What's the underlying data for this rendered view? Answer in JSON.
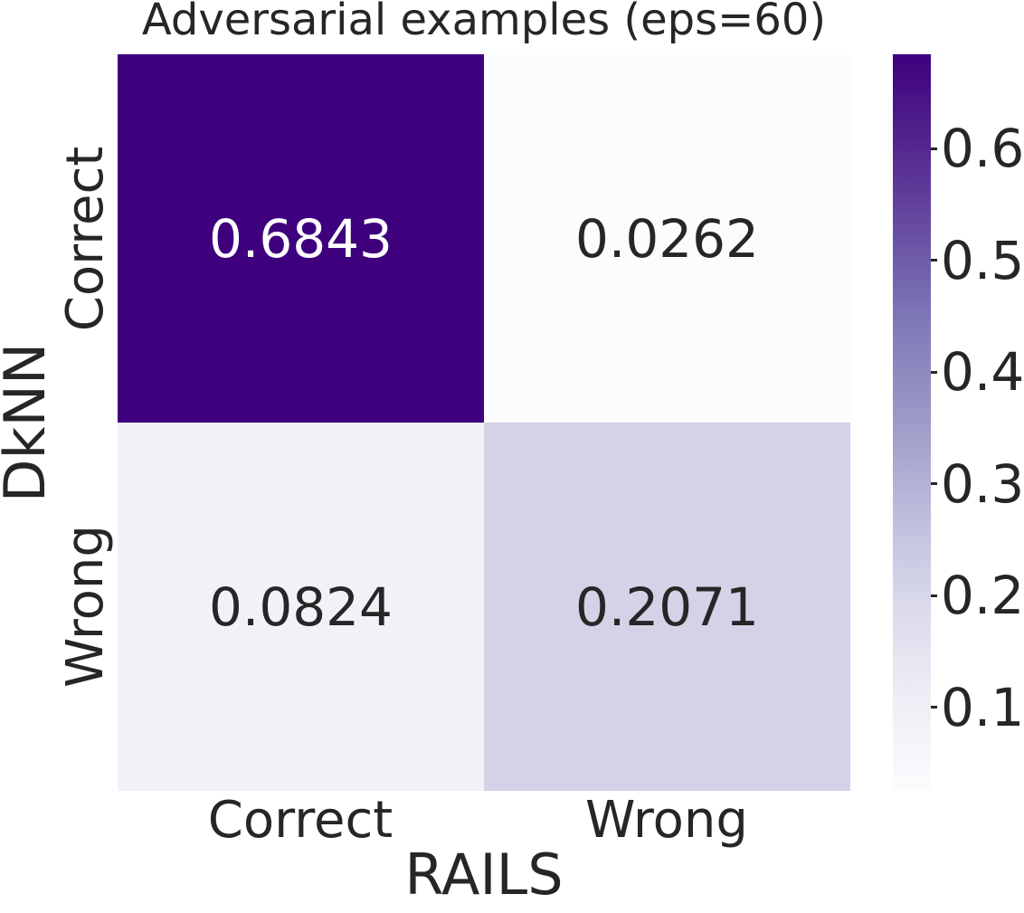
{
  "chart_data": {
    "type": "heatmap",
    "title": "Adversarial examples (eps=60)",
    "xlabel": "RAILS",
    "ylabel": "DkNN",
    "x_categories": [
      "Correct",
      "Wrong"
    ],
    "y_categories": [
      "Correct",
      "Wrong"
    ],
    "values": [
      [
        0.6843,
        0.0262
      ],
      [
        0.0824,
        0.2071
      ]
    ],
    "cell_labels": [
      [
        "0.6843",
        "0.0262"
      ],
      [
        "0.0824",
        "0.2071"
      ]
    ],
    "cell_colors": [
      [
        "#3f007d",
        "#fcfbfd"
      ],
      [
        "#f3f1f8",
        "#d3d2e7"
      ]
    ],
    "cell_text_colors": [
      [
        "#ffffff",
        "#262626"
      ],
      [
        "#262626",
        "#262626"
      ]
    ],
    "colormap": "Purples",
    "background": "#ffffff",
    "text_color": "#262626",
    "grid": false,
    "legend_position": "colorbar-right",
    "colorbar": {
      "min": 0.0262,
      "max": 0.6843,
      "ticks": [
        {
          "value": 0.1,
          "label": "0.1"
        },
        {
          "value": 0.2,
          "label": "0.2"
        },
        {
          "value": 0.3,
          "label": "0.3"
        },
        {
          "value": 0.4,
          "label": "0.4"
        },
        {
          "value": 0.5,
          "label": "0.5"
        },
        {
          "value": 0.6,
          "label": "0.6"
        }
      ],
      "gradient_stops_top_to_bottom": [
        "#3f007d",
        "#54278f",
        "#6a51a3",
        "#807dba",
        "#9e9ac8",
        "#bcbddc",
        "#dadaeb",
        "#efedf5",
        "#fcfbfd"
      ]
    }
  }
}
